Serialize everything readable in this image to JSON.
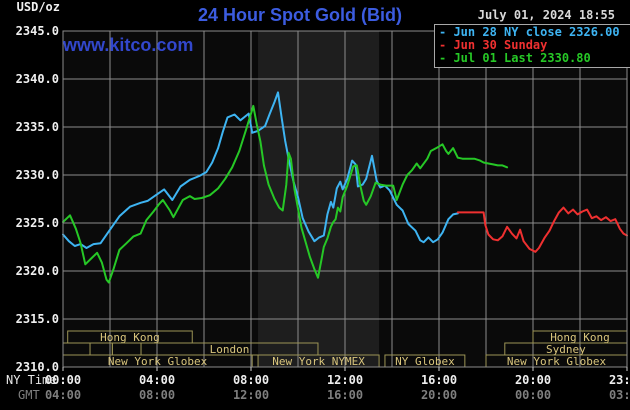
{
  "header": {
    "unit_label": "USD/oz",
    "title": "24 Hour Spot Gold (Bid)",
    "datetime": "July 01, 2024 18:55",
    "watermark": "www.kitco.com"
  },
  "legend": {
    "items": [
      {
        "dash": "-",
        "label": "Jun 28 NY close 2326.00",
        "color": "#3eb4f2"
      },
      {
        "dash": "-",
        "label": "Jun 30 Sunday",
        "color": "#ef3030"
      },
      {
        "dash": "-",
        "label": "Jul 01 Last 2330.80",
        "color": "#26c826"
      }
    ]
  },
  "axes": {
    "y_ticks": [
      "2345.0",
      "2340.0",
      "2335.0",
      "2330.0",
      "2325.0",
      "2320.0",
      "2315.0",
      "2310.0"
    ],
    "x_rows": [
      {
        "label": "NY Time",
        "label_color": "#e8e8e8",
        "tick_color": "#eeeeee",
        "ticks": [
          "00:00",
          "04:00",
          "08:00",
          "12:00",
          "16:00",
          "20:00",
          "23:59"
        ]
      },
      {
        "label": "GMT",
        "label_color": "#7f7f7f",
        "tick_color": "#7f7f7f",
        "ticks": [
          "04:00",
          "08:00",
          "12:00",
          "16:00",
          "20:00",
          "00:00",
          "03:59"
        ]
      }
    ]
  },
  "sessions": {
    "border_color": "#9c9455",
    "text_color": "#d9c57c",
    "rows": [
      {
        "boxes": [
          {
            "start": 0.2,
            "end": 5.5,
            "label": "Hong Kong"
          },
          {
            "start": 20.0,
            "end": 24,
            "label": "Hong Kong"
          }
        ]
      },
      {
        "boxes": [
          {
            "start": 0,
            "end": 1.15,
            "label": ""
          },
          {
            "start": 1.15,
            "end": 2.1,
            "label": ""
          },
          {
            "start": 2.1,
            "end": 3.32,
            "label": ""
          },
          {
            "start": 3.32,
            "end": 10.85,
            "label": "London"
          },
          {
            "start": 18.8,
            "end": 24,
            "label": "Sydney"
          }
        ]
      },
      {
        "boxes": [
          {
            "start": 0,
            "end": 8.05,
            "label": "New York Globex"
          },
          {
            "start": 8.3,
            "end": 13.45,
            "label": "New York NYMEX"
          },
          {
            "start": 13.7,
            "end": 17.1,
            "label": "NY Globex"
          },
          {
            "start": 18.0,
            "end": 24,
            "label": "New York Globex"
          }
        ]
      }
    ]
  },
  "chart_data": {
    "type": "line",
    "title": "24 Hour Spot Gold (Bid)",
    "xlabel": "NY Time (hours 00:00-23:59)",
    "ylabel": "USD/oz",
    "x_range_hours": [
      0,
      24
    ],
    "ylim": [
      2310.0,
      2345.0
    ],
    "y_gridline_step": 5,
    "x_gridline_step_hours": 2,
    "grid": true,
    "legend_position": "top-right",
    "plot_bg": "#0a0a0a",
    "grid_color": "#8c8c8c",
    "highlight_band": {
      "start_h": 8.3,
      "end_h": 13.45,
      "color": "#1e1e1e"
    },
    "series": [
      {
        "name": "Jun 28 NY close 2326.00",
        "color": "#3eb4f2",
        "points": [
          [
            0,
            2323.8
          ],
          [
            0.25,
            2323.1
          ],
          [
            0.5,
            2322.6
          ],
          [
            0.75,
            2322.8
          ],
          [
            1.0,
            2322.4
          ],
          [
            1.3,
            2322.8
          ],
          [
            1.6,
            2322.9
          ],
          [
            2.0,
            2324.3
          ],
          [
            2.4,
            2325.7
          ],
          [
            2.85,
            2326.7
          ],
          [
            3.3,
            2327.1
          ],
          [
            3.6,
            2327.3
          ],
          [
            3.95,
            2327.9
          ],
          [
            4.3,
            2328.5
          ],
          [
            4.65,
            2327.4
          ],
          [
            5.0,
            2328.8
          ],
          [
            5.4,
            2329.5
          ],
          [
            5.8,
            2329.9
          ],
          [
            6.1,
            2330.3
          ],
          [
            6.35,
            2331.3
          ],
          [
            6.6,
            2332.8
          ],
          [
            6.8,
            2334.5
          ],
          [
            7.0,
            2336.0
          ],
          [
            7.3,
            2336.3
          ],
          [
            7.55,
            2335.7
          ],
          [
            7.9,
            2336.4
          ],
          [
            8.05,
            2334.4
          ],
          [
            8.3,
            2334.6
          ],
          [
            8.6,
            2335.1
          ],
          [
            8.8,
            2336.4
          ],
          [
            9.0,
            2337.6
          ],
          [
            9.15,
            2338.6
          ],
          [
            9.3,
            2336.0
          ],
          [
            9.45,
            2333.6
          ],
          [
            9.6,
            2331.7
          ],
          [
            9.8,
            2329.4
          ],
          [
            10.0,
            2327.7
          ],
          [
            10.2,
            2325.5
          ],
          [
            10.45,
            2324.1
          ],
          [
            10.7,
            2323.1
          ],
          [
            10.9,
            2323.5
          ],
          [
            11.1,
            2323.7
          ],
          [
            11.25,
            2325.9
          ],
          [
            11.4,
            2327.2
          ],
          [
            11.5,
            2326.6
          ],
          [
            11.65,
            2328.6
          ],
          [
            11.8,
            2329.3
          ],
          [
            11.9,
            2328.5
          ],
          [
            12.1,
            2329.6
          ],
          [
            12.3,
            2331.5
          ],
          [
            12.45,
            2331.1
          ],
          [
            12.55,
            2328.8
          ],
          [
            12.75,
            2329.0
          ],
          [
            12.9,
            2329.6
          ],
          [
            13.15,
            2332.0
          ],
          [
            13.35,
            2329.4
          ],
          [
            13.5,
            2328.7
          ],
          [
            13.7,
            2328.9
          ],
          [
            13.9,
            2328.4
          ],
          [
            14.2,
            2326.9
          ],
          [
            14.45,
            2326.3
          ],
          [
            14.7,
            2324.9
          ],
          [
            15.0,
            2324.2
          ],
          [
            15.2,
            2323.2
          ],
          [
            15.35,
            2323.0
          ],
          [
            15.55,
            2323.5
          ],
          [
            15.75,
            2323.0
          ],
          [
            15.95,
            2323.3
          ],
          [
            16.15,
            2324.0
          ],
          [
            16.4,
            2325.4
          ],
          [
            16.6,
            2325.9
          ],
          [
            16.8,
            2326.0
          ]
        ]
      },
      {
        "name": "Jun 30 Sunday",
        "color": "#ef3030",
        "points": [
          [
            16.8,
            2326.1
          ],
          [
            17.9,
            2326.1
          ],
          [
            17.97,
            2324.8
          ],
          [
            18.1,
            2323.8
          ],
          [
            18.3,
            2323.3
          ],
          [
            18.5,
            2323.2
          ],
          [
            18.7,
            2323.6
          ],
          [
            18.9,
            2324.6
          ],
          [
            19.1,
            2323.9
          ],
          [
            19.3,
            2323.4
          ],
          [
            19.45,
            2324.3
          ],
          [
            19.6,
            2323.1
          ],
          [
            19.85,
            2322.3
          ],
          [
            20.1,
            2322.0
          ],
          [
            20.25,
            2322.4
          ],
          [
            20.5,
            2323.5
          ],
          [
            20.7,
            2324.2
          ],
          [
            20.9,
            2325.2
          ],
          [
            21.1,
            2326.1
          ],
          [
            21.3,
            2326.6
          ],
          [
            21.5,
            2326.0
          ],
          [
            21.7,
            2326.4
          ],
          [
            21.9,
            2325.9
          ],
          [
            22.1,
            2326.2
          ],
          [
            22.3,
            2326.4
          ],
          [
            22.5,
            2325.5
          ],
          [
            22.7,
            2325.7
          ],
          [
            22.9,
            2325.3
          ],
          [
            23.1,
            2325.6
          ],
          [
            23.3,
            2325.2
          ],
          [
            23.5,
            2325.4
          ],
          [
            23.7,
            2324.4
          ],
          [
            23.85,
            2323.9
          ],
          [
            24,
            2323.7
          ]
        ]
      },
      {
        "name": "Jul 01 Last 2330.80",
        "color": "#26c826",
        "points": [
          [
            0,
            2325.1
          ],
          [
            0.3,
            2325.8
          ],
          [
            0.55,
            2324.4
          ],
          [
            0.75,
            2322.9
          ],
          [
            0.95,
            2320.7
          ],
          [
            1.2,
            2321.3
          ],
          [
            1.45,
            2321.9
          ],
          [
            1.65,
            2320.9
          ],
          [
            1.85,
            2319.1
          ],
          [
            1.95,
            2318.8
          ],
          [
            2.15,
            2320.2
          ],
          [
            2.4,
            2322.2
          ],
          [
            2.7,
            2322.9
          ],
          [
            3.0,
            2323.6
          ],
          [
            3.3,
            2323.9
          ],
          [
            3.55,
            2325.3
          ],
          [
            3.85,
            2326.2
          ],
          [
            4.1,
            2327.0
          ],
          [
            4.25,
            2327.4
          ],
          [
            4.55,
            2326.3
          ],
          [
            4.7,
            2325.6
          ],
          [
            5.1,
            2327.4
          ],
          [
            5.4,
            2327.8
          ],
          [
            5.6,
            2327.5
          ],
          [
            5.9,
            2327.6
          ],
          [
            6.25,
            2327.9
          ],
          [
            6.6,
            2328.6
          ],
          [
            6.9,
            2329.6
          ],
          [
            7.2,
            2330.8
          ],
          [
            7.5,
            2332.5
          ],
          [
            7.8,
            2334.8
          ],
          [
            8.0,
            2336.4
          ],
          [
            8.1,
            2337.2
          ],
          [
            8.25,
            2335.2
          ],
          [
            8.4,
            2333.5
          ],
          [
            8.55,
            2331.0
          ],
          [
            8.75,
            2329.0
          ],
          [
            9.0,
            2327.5
          ],
          [
            9.2,
            2326.6
          ],
          [
            9.35,
            2326.3
          ],
          [
            9.5,
            2329.0
          ],
          [
            9.6,
            2332.3
          ],
          [
            9.7,
            2331.7
          ],
          [
            9.85,
            2328.5
          ],
          [
            10.0,
            2326.5
          ],
          [
            10.15,
            2324.5
          ],
          [
            10.35,
            2322.8
          ],
          [
            10.5,
            2321.5
          ],
          [
            10.7,
            2320.2
          ],
          [
            10.85,
            2319.3
          ],
          [
            11.0,
            2321.2
          ],
          [
            11.1,
            2322.5
          ],
          [
            11.25,
            2323.4
          ],
          [
            11.4,
            2324.6
          ],
          [
            11.5,
            2325.1
          ],
          [
            11.6,
            2325.4
          ],
          [
            11.7,
            2326.6
          ],
          [
            11.8,
            2326.2
          ],
          [
            11.9,
            2327.7
          ],
          [
            12.1,
            2328.9
          ],
          [
            12.35,
            2330.9
          ],
          [
            12.5,
            2331.0
          ],
          [
            12.65,
            2328.9
          ],
          [
            12.8,
            2327.3
          ],
          [
            12.9,
            2326.9
          ],
          [
            13.1,
            2327.8
          ],
          [
            13.3,
            2329.2
          ],
          [
            13.5,
            2329.0
          ],
          [
            13.75,
            2328.9
          ],
          [
            14.05,
            2328.9
          ],
          [
            14.2,
            2327.4
          ],
          [
            14.45,
            2329.0
          ],
          [
            14.65,
            2330.0
          ],
          [
            14.85,
            2330.5
          ],
          [
            15.05,
            2331.2
          ],
          [
            15.2,
            2330.7
          ],
          [
            15.5,
            2331.7
          ],
          [
            15.65,
            2332.5
          ],
          [
            15.95,
            2332.9
          ],
          [
            16.15,
            2333.2
          ],
          [
            16.3,
            2332.5
          ],
          [
            16.4,
            2332.2
          ],
          [
            16.6,
            2332.8
          ],
          [
            16.8,
            2331.8
          ],
          [
            17.0,
            2331.7
          ],
          [
            17.5,
            2331.7
          ],
          [
            17.75,
            2331.5
          ],
          [
            17.9,
            2331.3
          ],
          [
            18.1,
            2331.2
          ],
          [
            18.3,
            2331.1
          ],
          [
            18.5,
            2331.0
          ],
          [
            18.7,
            2331.0
          ],
          [
            18.9,
            2330.8
          ]
        ]
      }
    ]
  }
}
